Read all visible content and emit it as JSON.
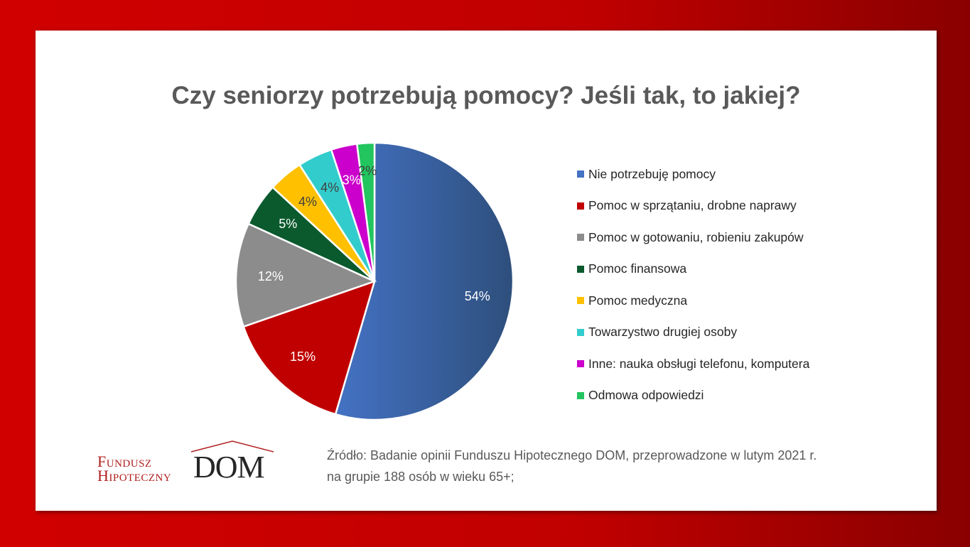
{
  "title": "Czy seniorzy potrzebują pomocy?  Jeśli tak, to jakiej?",
  "chart_data": {
    "type": "pie",
    "title": "Czy seniorzy potrzebują pomocy?  Jeśli tak, to jakiej?",
    "slices": [
      {
        "label": "Nie potrzebuję  pomocy",
        "value": 54,
        "data_label": "54%",
        "color": "#4472c4",
        "color_dark": "#2e4f7c",
        "label_color": "#ffffff"
      },
      {
        "label": "Pomoc w sprzątaniu, drobne naprawy",
        "value": 15,
        "data_label": "15%",
        "color": "#c00000",
        "color_dark": "#c00000",
        "label_color": "#ffffff"
      },
      {
        "label": "Pomoc w gotowaniu, robieniu zakupów",
        "value": 12,
        "data_label": "12%",
        "color": "#8c8c8c",
        "color_dark": "#8c8c8c",
        "label_color": "#ffffff"
      },
      {
        "label": "Pomoc finansowa",
        "value": 5,
        "data_label": "5%",
        "color": "#0b5a2e",
        "color_dark": "#0b5a2e",
        "label_color": "#ffffff"
      },
      {
        "label": "Pomoc medyczna",
        "value": 4,
        "data_label": "4%",
        "color": "#ffc000",
        "color_dark": "#ffc000",
        "label_color": "#404040"
      },
      {
        "label": "Towarzystwo drugiej osoby",
        "value": 4,
        "data_label": "4%",
        "color": "#33cccc",
        "color_dark": "#33cccc",
        "label_color": "#404040"
      },
      {
        "label": "Inne: nauka obsługi telefonu, komputera",
        "value": 3,
        "data_label": "3%",
        "color": "#cc00cc",
        "color_dark": "#cc00cc",
        "label_color": "#ffffff"
      },
      {
        "label": "Odmowa odpowiedzi",
        "value": 2,
        "data_label": "2%",
        "color": "#22c55e",
        "color_dark": "#22c55e",
        "label_color": "#404040"
      }
    ],
    "legend_position": "right"
  },
  "source": {
    "line1": "Źródło:    Badanie opinii Funduszu Hipotecznego DOM, przeprowadzone  w lutym 2021 r.",
    "line2": "na grupie 188 osób w wieku 65+;"
  },
  "logo": {
    "line1": "Fundusz",
    "line2": "Hipoteczny",
    "brand": "DOM"
  }
}
